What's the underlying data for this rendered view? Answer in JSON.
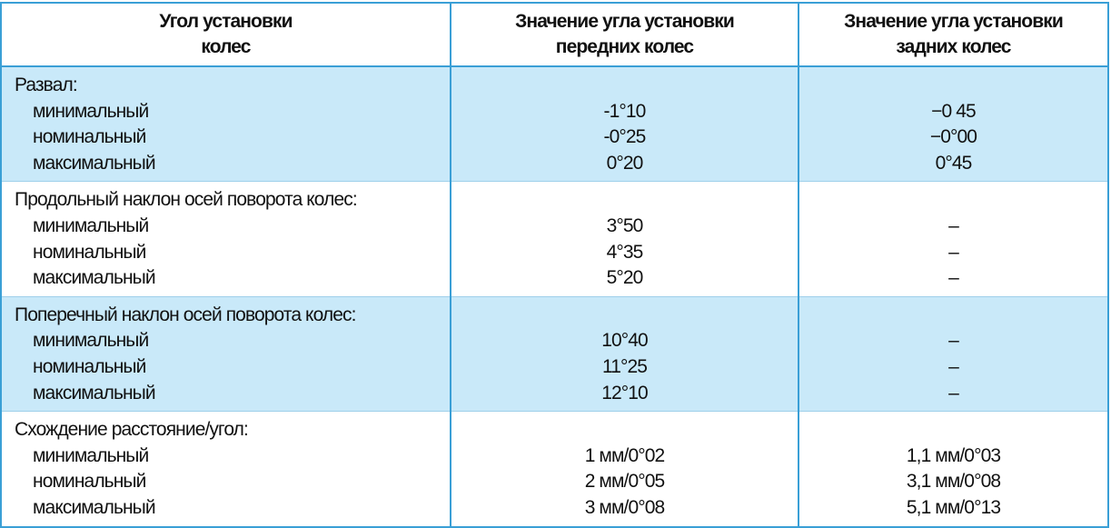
{
  "header": {
    "col1": [
      "Угол установки",
      "колес"
    ],
    "col2": [
      "Значение угла установки",
      "передних колес"
    ],
    "col3": [
      "Значение угла установки",
      "задних колес"
    ]
  },
  "groups": [
    {
      "title": "Развал:",
      "rows": [
        {
          "label": "минимальный",
          "front": "-1°10",
          "rear": "−0 45"
        },
        {
          "label": "номинальный",
          "front": "-0°25",
          "rear": "−0°00"
        },
        {
          "label": "максимальный",
          "front": "0°20",
          "rear": "0°45"
        }
      ]
    },
    {
      "title": "Продольный наклон осей поворота колес:",
      "rows": [
        {
          "label": "минимальный",
          "front": "3°50",
          "rear": "–"
        },
        {
          "label": "номинальный",
          "front": "4°35",
          "rear": "–"
        },
        {
          "label": "максимальный",
          "front": "5°20",
          "rear": "–"
        }
      ]
    },
    {
      "title": "Поперечный наклон осей поворота колес:",
      "rows": [
        {
          "label": "минимальный",
          "front": "10°40",
          "rear": "–"
        },
        {
          "label": "номинальный",
          "front": "11°25",
          "rear": "–"
        },
        {
          "label": "максимальный",
          "front": "12°10",
          "rear": "–"
        }
      ]
    },
    {
      "title": "Схождение расстояние/угол:",
      "rows": [
        {
          "label": "минимальный",
          "front": "1 мм/0°02",
          "rear": "1,1 мм/0°03"
        },
        {
          "label": "номинальный",
          "front": "2 мм/0°05",
          "rear": "3,1 мм/0°08"
        },
        {
          "label": "максимальный",
          "front": "3 мм/0°08",
          "rear": "5,1 мм/0°13"
        }
      ]
    }
  ],
  "colors": {
    "border": "#3a9fd6",
    "band": "#c9e9f9"
  }
}
